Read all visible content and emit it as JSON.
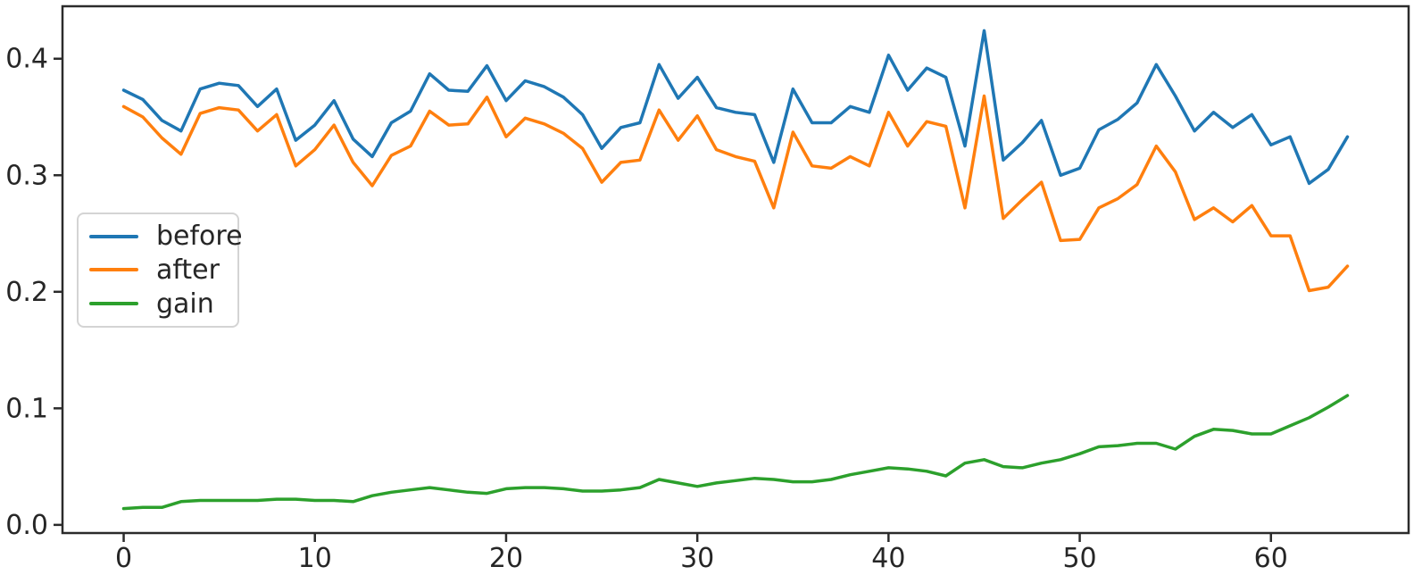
{
  "chart_data": {
    "type": "line",
    "title": "",
    "xlabel": "",
    "ylabel": "",
    "x_is_index": true,
    "x_range": [
      0,
      64
    ],
    "x_ticks": [
      0,
      10,
      20,
      30,
      40,
      50,
      60
    ],
    "y_ticks": [
      "0.0",
      "0.1",
      "0.2",
      "0.3",
      "0.4"
    ],
    "y_tick_values": [
      0.0,
      0.1,
      0.2,
      0.3,
      0.4
    ],
    "xlim": [
      -3.2,
      67.2
    ],
    "ylim": [
      -0.007,
      0.445
    ],
    "grid": false,
    "legend_position": "center-left",
    "axis_color": "#2b2b2b",
    "series": [
      {
        "name": "before",
        "color": "#1f77b4",
        "values": [
          0.373,
          0.365,
          0.347,
          0.338,
          0.374,
          0.379,
          0.377,
          0.359,
          0.374,
          0.33,
          0.343,
          0.364,
          0.331,
          0.316,
          0.345,
          0.355,
          0.387,
          0.373,
          0.372,
          0.394,
          0.364,
          0.381,
          0.376,
          0.367,
          0.352,
          0.323,
          0.341,
          0.345,
          0.395,
          0.366,
          0.384,
          0.358,
          0.354,
          0.352,
          0.311,
          0.374,
          0.345,
          0.345,
          0.359,
          0.354,
          0.403,
          0.373,
          0.392,
          0.384,
          0.325,
          0.424,
          0.313,
          0.328,
          0.347,
          0.3,
          0.306,
          0.339,
          0.348,
          0.362,
          0.395,
          0.368,
          0.338,
          0.354,
          0.341,
          0.352,
          0.326,
          0.333,
          0.293,
          0.305,
          0.333
        ]
      },
      {
        "name": "after",
        "color": "#ff7f0e",
        "values": [
          0.359,
          0.35,
          0.332,
          0.318,
          0.353,
          0.358,
          0.356,
          0.338,
          0.352,
          0.308,
          0.322,
          0.343,
          0.311,
          0.291,
          0.317,
          0.325,
          0.355,
          0.343,
          0.344,
          0.367,
          0.333,
          0.349,
          0.344,
          0.336,
          0.323,
          0.294,
          0.311,
          0.313,
          0.356,
          0.33,
          0.351,
          0.322,
          0.316,
          0.312,
          0.272,
          0.337,
          0.308,
          0.306,
          0.316,
          0.308,
          0.354,
          0.325,
          0.346,
          0.342,
          0.272,
          0.368,
          0.263,
          0.279,
          0.294,
          0.244,
          0.245,
          0.272,
          0.28,
          0.292,
          0.325,
          0.303,
          0.262,
          0.272,
          0.26,
          0.274,
          0.248,
          0.248,
          0.201,
          0.204,
          0.222
        ]
      },
      {
        "name": "gain",
        "color": "#2ca02c",
        "values": [
          0.014,
          0.015,
          0.015,
          0.02,
          0.021,
          0.021,
          0.021,
          0.021,
          0.022,
          0.022,
          0.021,
          0.021,
          0.02,
          0.025,
          0.028,
          0.03,
          0.032,
          0.03,
          0.028,
          0.027,
          0.031,
          0.032,
          0.032,
          0.031,
          0.029,
          0.029,
          0.03,
          0.032,
          0.039,
          0.036,
          0.033,
          0.036,
          0.038,
          0.04,
          0.039,
          0.037,
          0.037,
          0.039,
          0.043,
          0.046,
          0.049,
          0.048,
          0.046,
          0.042,
          0.053,
          0.056,
          0.05,
          0.049,
          0.053,
          0.056,
          0.061,
          0.067,
          0.068,
          0.07,
          0.07,
          0.065,
          0.076,
          0.082,
          0.081,
          0.078,
          0.078,
          0.085,
          0.092,
          0.101,
          0.111
        ]
      }
    ]
  },
  "legend": {
    "items": [
      {
        "label": "before"
      },
      {
        "label": "after"
      },
      {
        "label": "gain"
      }
    ]
  }
}
